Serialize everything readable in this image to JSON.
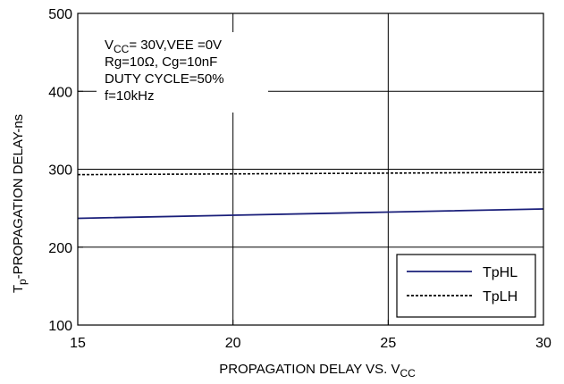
{
  "chart_data": {
    "type": "line",
    "xlabel": {
      "main": "PROPAGATION DELAY VS. V",
      "sub": "CC"
    },
    "ylabel": {
      "pre": "T",
      "sub": "p",
      "post": "-PROPAGATION DELAY-ns"
    },
    "xlim": [
      15,
      30
    ],
    "ylim": [
      100,
      500
    ],
    "x_ticks": [
      "15",
      "20",
      "25",
      "30"
    ],
    "y_ticks": [
      "100",
      "200",
      "300",
      "400",
      "500"
    ],
    "grid": true,
    "legend_position": "bottom-right",
    "conditions": [
      {
        "pre": "V",
        "sub": "CC",
        "post": "= 30V,VEE =0V"
      },
      {
        "pre": "Rg=10Ω, Cg=10nF",
        "sub": "",
        "post": ""
      },
      {
        "pre": "DUTY CYCLE=50%",
        "sub": "",
        "post": ""
      },
      {
        "pre": "f=10kHz",
        "sub": "",
        "post": ""
      }
    ],
    "series": [
      {
        "name": "TpHL",
        "style": "solid",
        "color": "#1a1f7a",
        "x": [
          15,
          20,
          25,
          30
        ],
        "y": [
          237,
          241,
          245,
          249
        ]
      },
      {
        "name": "TpLH",
        "style": "dashed",
        "color": "#000000",
        "x": [
          15,
          20,
          25,
          30
        ],
        "y": [
          293,
          294,
          295,
          296
        ]
      }
    ]
  }
}
